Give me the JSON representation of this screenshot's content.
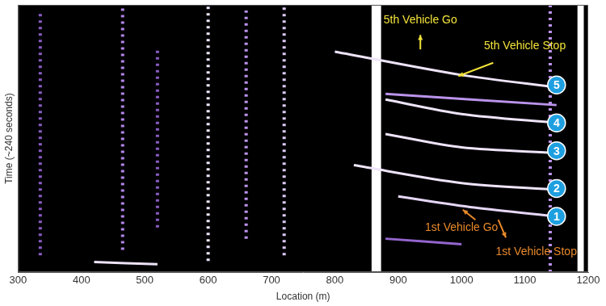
{
  "chart_data": {
    "type": "heatmap",
    "xlabel": "Location (m)",
    "ylabel": "Time (~240 seconds)",
    "xlim": [
      300,
      1200
    ],
    "xticks": [
      300,
      400,
      500,
      600,
      700,
      800,
      900,
      1000,
      1100,
      1200
    ],
    "ylim": [
      0,
      240
    ],
    "tick_labels": "x",
    "grid": false,
    "clim": [
      0,
      1
    ],
    "bands": [
      {
        "x": [
          858,
          873
        ],
        "intensity": 1
      },
      {
        "x": [
          1183,
          1193
        ],
        "intensity": 1
      }
    ],
    "stripes": [
      {
        "x": 335,
        "y": [
          15,
          235
        ],
        "intensity": 0.35
      },
      {
        "x": 465,
        "y": [
          20,
          240
        ],
        "intensity": 0.55
      },
      {
        "x": 520,
        "y": [
          40,
          200
        ],
        "intensity": 0.35
      },
      {
        "x": 600,
        "y": [
          10,
          240
        ],
        "intensity": 0.9
      },
      {
        "x": 660,
        "y": [
          30,
          235
        ],
        "intensity": 0.6
      },
      {
        "x": 720,
        "y": [
          15,
          240
        ],
        "intensity": 0.8
      },
      {
        "x": 1140,
        "y": [
          0,
          240
        ],
        "intensity": 0.6
      }
    ],
    "streaks": [
      {
        "x": [
          800,
          1000,
          1150
        ],
        "y": [
          198,
          177,
          166
        ],
        "intensity": 0.9
      },
      {
        "x": [
          880,
          1150
        ],
        "y": [
          160,
          150
        ],
        "intensity": 0.6
      },
      {
        "x": [
          880,
          1000,
          1150
        ],
        "y": [
          155,
          142,
          134
        ],
        "intensity": 0.9
      },
      {
        "x": [
          880,
          1000,
          1150
        ],
        "y": [
          124,
          112,
          107
        ],
        "intensity": 0.9
      },
      {
        "x": [
          830,
          1000,
          1150
        ],
        "y": [
          96,
          80,
          74
        ],
        "intensity": 0.9
      },
      {
        "x": [
          900,
          1020,
          1150
        ],
        "y": [
          68,
          58,
          50
        ],
        "intensity": 0.85
      },
      {
        "x": [
          420,
          520
        ],
        "y": [
          9,
          7
        ],
        "intensity": 0.9
      },
      {
        "x": [
          880,
          1000
        ],
        "y": [
          30,
          25
        ],
        "intensity": 0.4
      }
    ],
    "annotations": [
      {
        "text": "5th Vehicle Go",
        "x": 935,
        "y": 226,
        "color": "#f2e33a",
        "arrow": {
          "x": [
            935,
            935
          ],
          "y": [
            200,
            213
          ]
        }
      },
      {
        "text": "5th Vehicle Stop",
        "x": 1100,
        "y": 203,
        "color": "#f2e33a",
        "arrow": {
          "x": [
            1050,
            995
          ],
          "y": [
            188,
            176
          ]
        }
      },
      {
        "text": "1st Vehicle Go",
        "x": 1000,
        "y": 40,
        "color": "#e8892a",
        "arrow": {
          "x": [
            1022,
            1002
          ],
          "y": [
            47,
            56
          ]
        }
      },
      {
        "text": "1st Vehicle Stop",
        "x": 1118,
        "y": 18,
        "color": "#e8892a",
        "arrow": {
          "x": [
            1058,
            1070
          ],
          "y": [
            47,
            31
          ]
        }
      }
    ],
    "markers": [
      {
        "label": "1",
        "x": 1150,
        "y": 50,
        "color": "#1e9fe0"
      },
      {
        "label": "2",
        "x": 1150,
        "y": 75,
        "color": "#1e9fe0"
      },
      {
        "label": "3",
        "x": 1150,
        "y": 109,
        "color": "#1e9fe0"
      },
      {
        "label": "4",
        "x": 1150,
        "y": 134,
        "color": "#1e9fe0"
      },
      {
        "label": "5",
        "x": 1150,
        "y": 168,
        "color": "#1e9fe0"
      }
    ]
  }
}
